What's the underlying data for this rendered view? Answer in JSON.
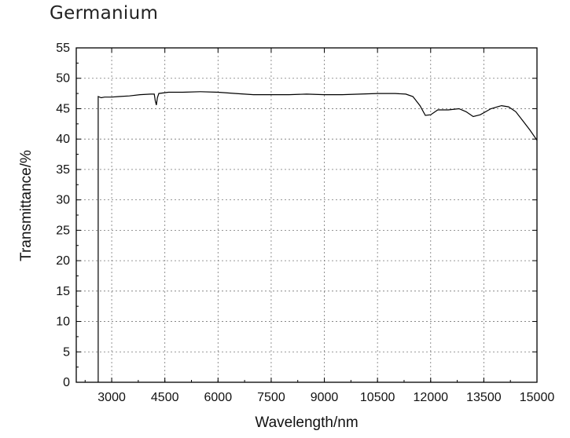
{
  "chart_data": {
    "type": "line",
    "title": "Germanium",
    "xlabel": "Wavelength/nm",
    "ylabel": "Transmittance/%",
    "xlim": [
      2000,
      15000
    ],
    "ylim": [
      0,
      55
    ],
    "xticks": [
      3000,
      4500,
      6000,
      7500,
      9000,
      10500,
      12000,
      13500,
      15000
    ],
    "yticks": [
      0,
      5,
      10,
      15,
      20,
      25,
      30,
      35,
      40,
      45,
      50,
      55
    ],
    "grid": true,
    "series": [
      {
        "color": "#000000",
        "points": [
          [
            2620,
            0
          ],
          [
            2620,
            47.0
          ],
          [
            2700,
            46.8
          ],
          [
            2800,
            46.9
          ],
          [
            3000,
            46.9
          ],
          [
            3200,
            47.0
          ],
          [
            3500,
            47.1
          ],
          [
            3800,
            47.3
          ],
          [
            4100,
            47.4
          ],
          [
            4200,
            47.4
          ],
          [
            4230,
            46.3
          ],
          [
            4260,
            45.6
          ],
          [
            4290,
            46.8
          ],
          [
            4330,
            47.5
          ],
          [
            4600,
            47.7
          ],
          [
            5000,
            47.7
          ],
          [
            5500,
            47.8
          ],
          [
            6000,
            47.7
          ],
          [
            6500,
            47.5
          ],
          [
            7000,
            47.3
          ],
          [
            7500,
            47.3
          ],
          [
            8000,
            47.3
          ],
          [
            8500,
            47.4
          ],
          [
            9000,
            47.3
          ],
          [
            9500,
            47.3
          ],
          [
            10000,
            47.4
          ],
          [
            10500,
            47.5
          ],
          [
            11000,
            47.5
          ],
          [
            11300,
            47.4
          ],
          [
            11500,
            47.0
          ],
          [
            11700,
            45.5
          ],
          [
            11850,
            43.9
          ],
          [
            12000,
            44.0
          ],
          [
            12200,
            44.8
          ],
          [
            12500,
            44.8
          ],
          [
            12800,
            45.0
          ],
          [
            13000,
            44.5
          ],
          [
            13200,
            43.7
          ],
          [
            13400,
            44.0
          ],
          [
            13700,
            45.0
          ],
          [
            14000,
            45.5
          ],
          [
            14200,
            45.3
          ],
          [
            14400,
            44.5
          ],
          [
            14600,
            43.0
          ],
          [
            14800,
            41.5
          ],
          [
            15000,
            39.8
          ]
        ]
      }
    ]
  }
}
